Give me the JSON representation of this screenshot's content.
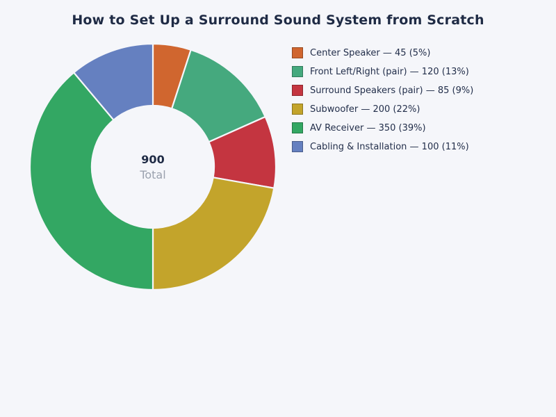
{
  "page": {
    "background": "#f5f6fa",
    "ink": "#1f2b45",
    "muted": "#9aa1ae"
  },
  "title": "How to Set Up a Surround Sound System from Scratch",
  "center": {
    "value": "900",
    "label": "Total"
  },
  "chart_data": {
    "type": "pie",
    "donut": true,
    "title": "How to Set Up a Surround Sound System from Scratch",
    "total": 900,
    "total_label": "Total",
    "legend_position": "right",
    "start_angle_deg": 0,
    "direction": "clockwise",
    "segments": [
      {
        "label": "Center Speaker",
        "value": 45,
        "percent": 5,
        "color": "#d0662f",
        "legend_label": "Center Speaker — 45 (5%)"
      },
      {
        "label": "Front Left/Right (pair)",
        "value": 120,
        "percent": 13,
        "color": "#45a97e",
        "legend_label": "Front Left/Right (pair) — 120 (13%)"
      },
      {
        "label": "Surround Speakers (pair)",
        "value": 85,
        "percent": 9,
        "color": "#c43540",
        "legend_label": "Surround Speakers (pair) — 85 (9%)"
      },
      {
        "label": "Subwoofer",
        "value": 200,
        "percent": 22,
        "color": "#c3a42b",
        "legend_label": "Subwoofer — 200 (22%)"
      },
      {
        "label": "AV Receiver",
        "value": 350,
        "percent": 39,
        "color": "#33a763",
        "legend_label": "AV Receiver — 350 (39%)"
      },
      {
        "label": "Cabling & Installation",
        "value": 100,
        "percent": 11,
        "color": "#6580c0",
        "legend_label": "Cabling & Installation — 100 (11%)"
      }
    ],
    "geometry": {
      "outer_radius": 177,
      "inner_radius": 88,
      "gap_stroke": "#f5f6fa",
      "gap_width": 2.2
    }
  }
}
